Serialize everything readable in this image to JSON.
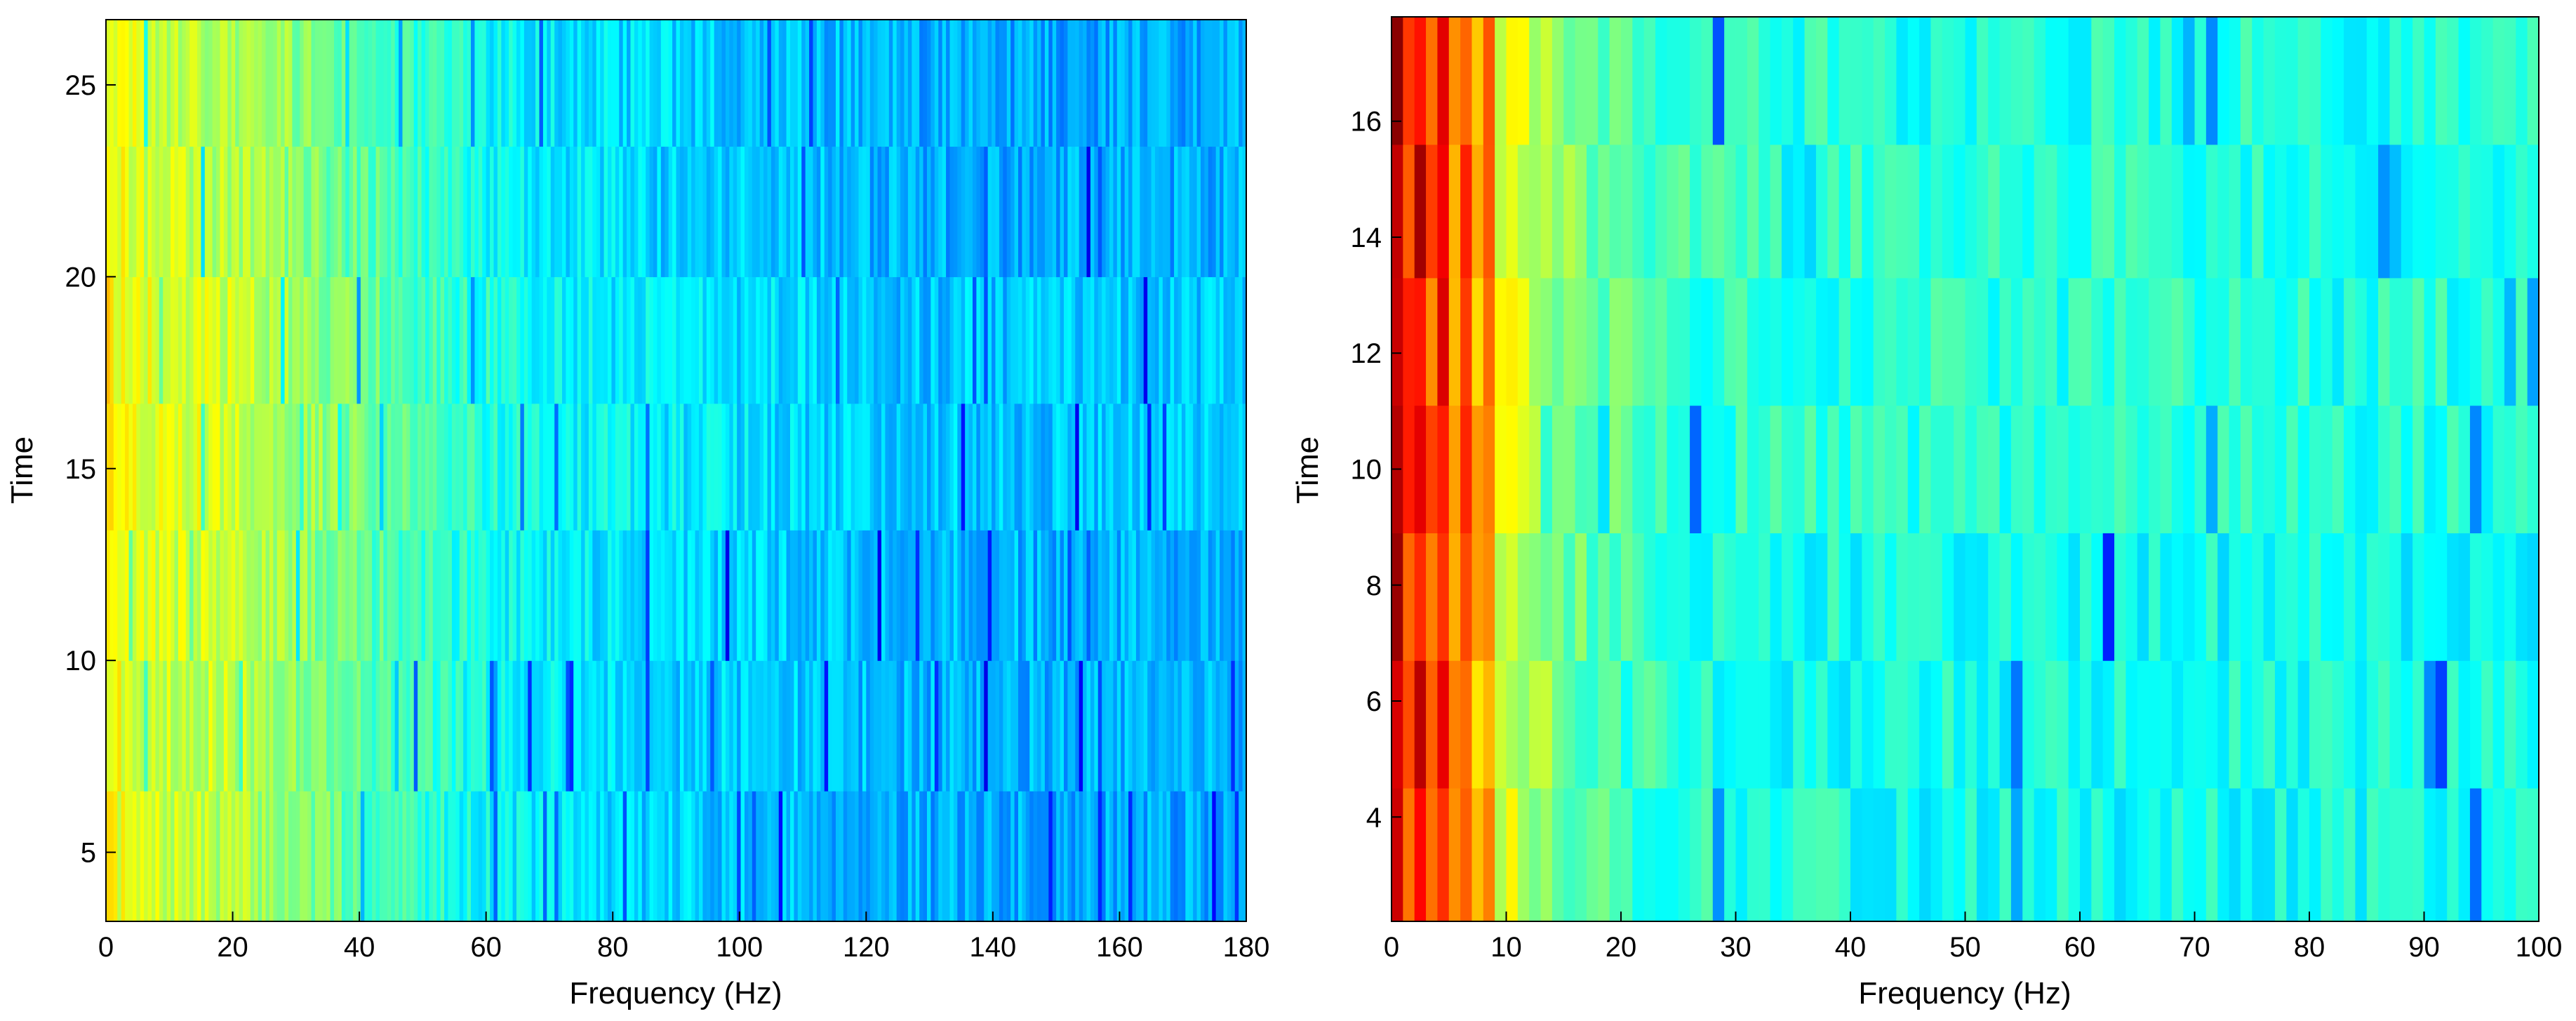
{
  "chart_data": [
    {
      "type": "heatmap",
      "title": "",
      "xlabel": "Frequency (Hz)",
      "ylabel": "Time",
      "xlim": [
        0,
        180
      ],
      "ylim": [
        3.2,
        26.7
      ],
      "xticks": [
        0,
        20,
        40,
        60,
        80,
        100,
        120,
        140,
        160,
        180
      ],
      "yticks": [
        5,
        10,
        15,
        20,
        25
      ],
      "x_bin_width": 0.6,
      "time_bands": [
        {
          "t0": 3.2,
          "t1": 6.6
        },
        {
          "t0": 6.6,
          "t1": 10.0
        },
        {
          "t0": 10.0,
          "t1": 13.4
        },
        {
          "t0": 13.4,
          "t1": 16.7
        },
        {
          "t0": 16.7,
          "t1": 20.0
        },
        {
          "t0": 20.0,
          "t1": 23.4
        },
        {
          "t0": 23.4,
          "t1": 26.7
        }
      ],
      "intensity_profile": {
        "freqs": [
          0,
          5,
          10,
          20,
          30,
          40,
          50,
          60,
          80,
          100,
          120,
          140,
          160,
          180
        ],
        "levels": [
          0.63,
          0.59,
          0.58,
          0.56,
          0.52,
          0.47,
          0.43,
          0.39,
          0.35,
          0.33,
          0.31,
          0.3,
          0.3,
          0.3
        ]
      },
      "colormap": "jet",
      "grid": false,
      "legend": "none"
    },
    {
      "type": "heatmap",
      "title": "",
      "xlabel": "Frequency (Hz)",
      "ylabel": "Time",
      "xlim": [
        0,
        100
      ],
      "ylim": [
        2.2,
        17.8
      ],
      "xticks": [
        0,
        10,
        20,
        30,
        40,
        50,
        60,
        70,
        80,
        90,
        100
      ],
      "yticks": [
        4,
        6,
        8,
        10,
        12,
        14,
        16
      ],
      "x_bin_width": 1,
      "time_bands": [
        {
          "t0": 2.2,
          "t1": 4.5
        },
        {
          "t0": 4.5,
          "t1": 6.7
        },
        {
          "t0": 6.7,
          "t1": 8.9
        },
        {
          "t0": 8.9,
          "t1": 11.1
        },
        {
          "t0": 11.1,
          "t1": 13.3
        },
        {
          "t0": 13.3,
          "t1": 15.6
        },
        {
          "t0": 15.6,
          "t1": 17.8
        }
      ],
      "intensity_profile": {
        "freqs": [
          0,
          2,
          5,
          8,
          10,
          12,
          15,
          20,
          30,
          50,
          100
        ],
        "levels": [
          0.9,
          0.86,
          0.8,
          0.74,
          0.62,
          0.56,
          0.5,
          0.45,
          0.41,
          0.4,
          0.4
        ]
      },
      "colormap": "jet",
      "grid": false,
      "legend": "none"
    }
  ]
}
